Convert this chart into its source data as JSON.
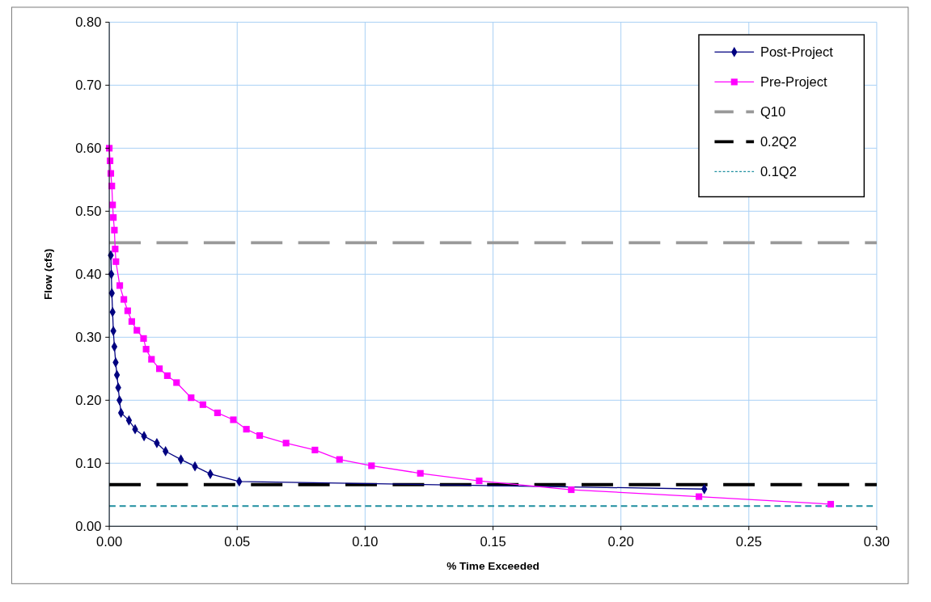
{
  "chart_data": {
    "type": "line",
    "xlabel": "% Time Exceeded",
    "ylabel": "Flow (cfs)",
    "xlim": [
      0,
      0.3
    ],
    "xticks": [
      {
        "value": 0,
        "label": "0.00"
      },
      {
        "value": 0.05,
        "label": "0.05"
      },
      {
        "value": 0.1,
        "label": "0.10"
      },
      {
        "value": 0.15,
        "label": "0.15"
      },
      {
        "value": 0.2,
        "label": "0.20"
      },
      {
        "value": 0.25,
        "label": "0.25"
      },
      {
        "value": 0.3,
        "label": "0.30"
      }
    ],
    "ylim": [
      0,
      0.8
    ],
    "yticks": [
      {
        "value": 0,
        "label": "0.00"
      },
      {
        "value": 0.1,
        "label": "0.10"
      },
      {
        "value": 0.2,
        "label": "0.20"
      },
      {
        "value": 0.3,
        "label": "0.30"
      },
      {
        "value": 0.4,
        "label": "0.40"
      },
      {
        "value": 0.5,
        "label": "0.50"
      },
      {
        "value": 0.6,
        "label": "0.60"
      },
      {
        "value": 0.7,
        "label": "0.70"
      },
      {
        "value": 0.8,
        "label": "0.80"
      }
    ],
    "grid": true,
    "legend": "top right",
    "line_style": "solid",
    "series": [
      {
        "name": "Post-Project",
        "color": "#000080",
        "marker": "diamond",
        "x": [
          0.0006,
          0.0008,
          0.001,
          0.0013,
          0.0016,
          0.002,
          0.0025,
          0.003,
          0.0035,
          0.004,
          0.0046,
          0.0077,
          0.0101,
          0.0136,
          0.0186,
          0.022,
          0.028,
          0.0335,
          0.0395,
          0.0508,
          0.2326
        ],
        "values": [
          0.43,
          0.4,
          0.37,
          0.34,
          0.31,
          0.285,
          0.26,
          0.24,
          0.22,
          0.2,
          0.18,
          0.168,
          0.154,
          0.143,
          0.132,
          0.119,
          0.106,
          0.095,
          0.083,
          0.071,
          0.059
        ]
      },
      {
        "name": "Pre-Project",
        "color": "#ff00ff",
        "marker": "square",
        "x": [
          0,
          0.0003,
          0.0006,
          0.001,
          0.0013,
          0.0016,
          0.002,
          0.0023,
          0.0026,
          0.0041,
          0.0057,
          0.0072,
          0.0088,
          0.0108,
          0.0134,
          0.0144,
          0.0165,
          0.0196,
          0.0227,
          0.0263,
          0.032,
          0.0366,
          0.0423,
          0.0485,
          0.0536,
          0.0588,
          0.0691,
          0.0804,
          0.09,
          0.1025,
          0.1216,
          0.1446,
          0.1806,
          0.2305,
          0.282
        ],
        "values": [
          0.6,
          0.58,
          0.56,
          0.54,
          0.51,
          0.49,
          0.47,
          0.44,
          0.42,
          0.382,
          0.36,
          0.342,
          0.325,
          0.311,
          0.298,
          0.281,
          0.265,
          0.25,
          0.239,
          0.228,
          0.204,
          0.193,
          0.18,
          0.169,
          0.154,
          0.144,
          0.132,
          0.121,
          0.106,
          0.096,
          0.084,
          0.072,
          0.058,
          0.047,
          0.035
        ]
      }
    ],
    "ref_lines": [
      {
        "axis": "y",
        "value": 0.45,
        "label": "Q10",
        "color": "#999999",
        "line_style": "dashed"
      },
      {
        "axis": "y",
        "value": 0.066,
        "label": "0.2Q2",
        "color": "#000000",
        "line_style": "dashed"
      },
      {
        "axis": "y",
        "value": 0.032,
        "label": "0.1Q2",
        "color": "#1f8fa0",
        "line_style": "dotted"
      }
    ]
  }
}
